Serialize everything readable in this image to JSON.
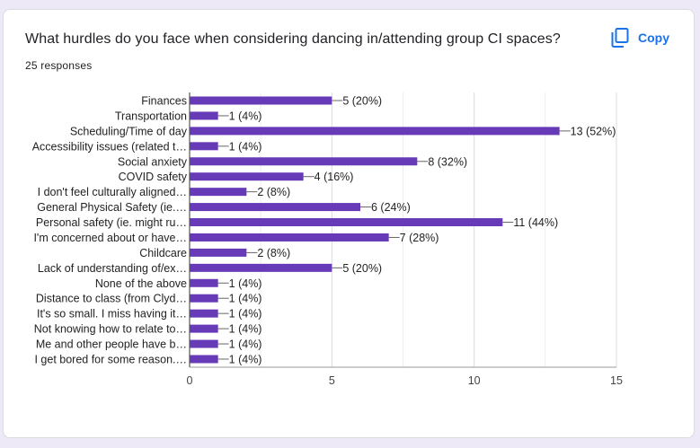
{
  "question": "What hurdles do you face when considering dancing in/attending group CI spaces?",
  "responses": "25 responses",
  "copy": {
    "label": "Copy",
    "icon": "copy-icon"
  },
  "colors": {
    "bar": "#673ab7",
    "accent": "#1a73e8",
    "grid": "#e6e6e6",
    "axis": "#333333"
  },
  "chart_data": {
    "type": "bar",
    "orientation": "horizontal",
    "categories": [
      "Finances",
      "Transportation",
      "Scheduling/Time of day",
      "Accessibility issues (related t…",
      "Social anxiety",
      "COVID safety",
      "I don't feel culturally aligned…",
      "General Physical Safety (ie.…",
      "Personal safety (ie. might ru…",
      "I'm concerned about or have…",
      "Childcare",
      "Lack of understanding of/ex…",
      "None of the above",
      "Distance to class (from Clyd…",
      "It's so small. I miss having it…",
      "Not knowing how to relate to…",
      "Me and other people have b…",
      "I get bored for some reason.…"
    ],
    "values": [
      5,
      1,
      13,
      1,
      8,
      4,
      2,
      6,
      11,
      7,
      2,
      5,
      1,
      1,
      1,
      1,
      1,
      1
    ],
    "value_labels": [
      "5 (20%)",
      "1 (4%)",
      "13 (52%)",
      "1 (4%)",
      "8 (32%)",
      "4 (16%)",
      "2 (8%)",
      "6 (24%)",
      "11 (44%)",
      "7 (28%)",
      "2 (8%)",
      "5 (20%)",
      "1 (4%)",
      "1 (4%)",
      "1 (4%)",
      "1 (4%)",
      "1 (4%)",
      "1 (4%)"
    ],
    "xlim": [
      0,
      15
    ],
    "xticks": [
      "0",
      "5",
      "10",
      "15"
    ],
    "grid": true
  }
}
